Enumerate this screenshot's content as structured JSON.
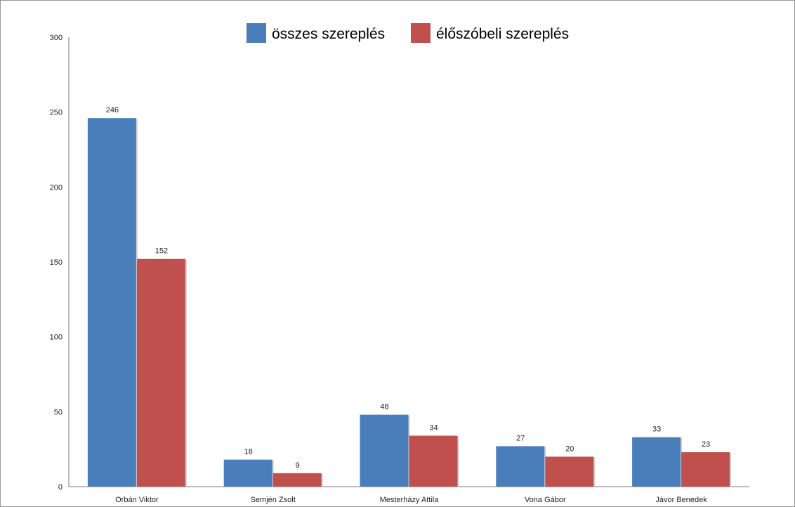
{
  "chart_data": {
    "type": "bar",
    "categories": [
      "Orbán Viktor",
      "Semjén Zsolt",
      "Mesterházy Attila",
      "Vona Gábor",
      "Jávor Benedek"
    ],
    "series": [
      {
        "name": "összes szereplés",
        "color": "#4a7ebb",
        "values": [
          246,
          18,
          48,
          27,
          33
        ]
      },
      {
        "name": "élőszóbeli szereplés",
        "color": "#c0504d",
        "values": [
          152,
          9,
          34,
          20,
          23
        ]
      }
    ],
    "y_ticks": [
      "0",
      "50",
      "100",
      "150",
      "200",
      "250",
      "300"
    ],
    "ylim": [
      0,
      300
    ],
    "grid": false,
    "legend_position": "top-center",
    "show_data_labels": true
  }
}
